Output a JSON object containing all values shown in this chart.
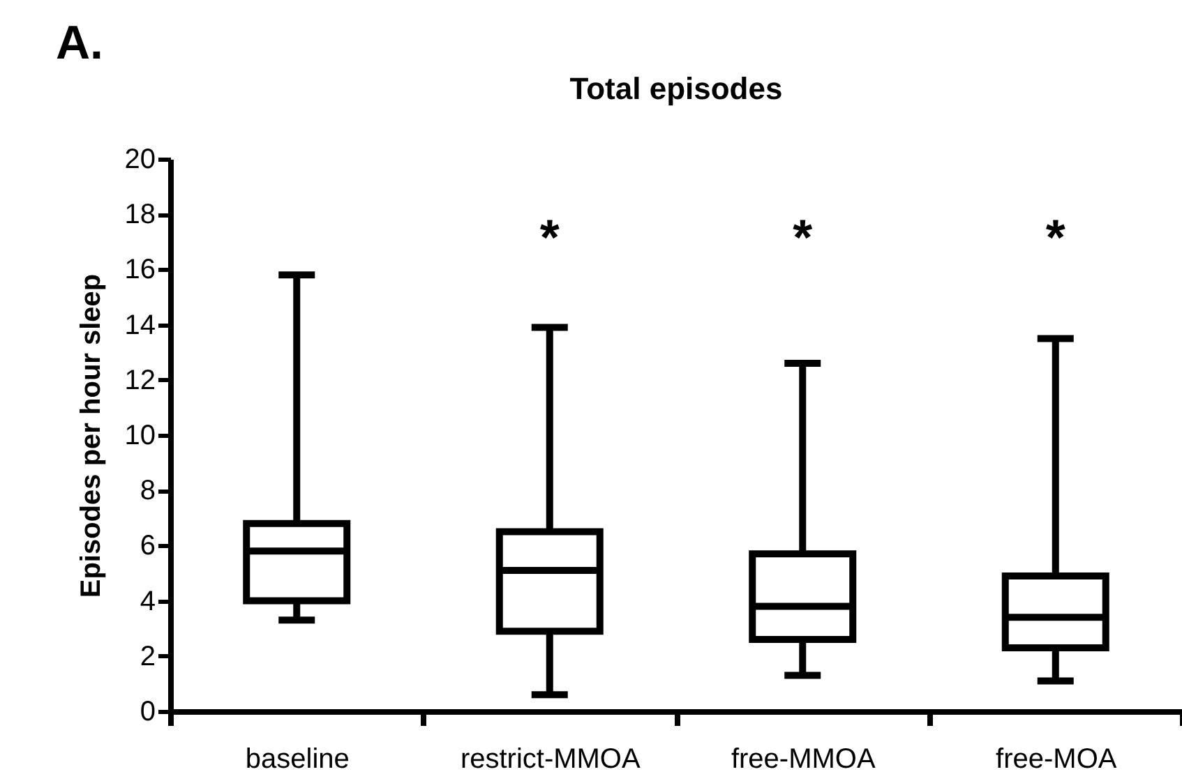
{
  "chart_data": {
    "type": "box",
    "title": "Total episodes",
    "ylabel": "Episodes per hour sleep",
    "categories": [
      "baseline",
      "restrict-MMOA",
      "free-MMOA",
      "free-MOA"
    ],
    "boxes": [
      {
        "low": 3.3,
        "q1": 4.0,
        "median": 5.8,
        "q3": 6.8,
        "high": 15.8
      },
      {
        "low": 0.6,
        "q1": 2.9,
        "median": 5.1,
        "q3": 6.5,
        "high": 13.9
      },
      {
        "low": 1.3,
        "q1": 2.6,
        "median": 3.8,
        "q3": 5.7,
        "high": 12.6
      },
      {
        "low": 1.1,
        "q1": 2.3,
        "median": 3.4,
        "q3": 4.9,
        "high": 13.5
      }
    ],
    "ylim": [
      0,
      20
    ],
    "yticks": [
      0,
      2,
      4,
      6,
      8,
      10,
      12,
      14,
      16,
      18,
      20
    ],
    "grid": false,
    "annotations": [
      "A.",
      "*",
      "*",
      "*"
    ]
  }
}
